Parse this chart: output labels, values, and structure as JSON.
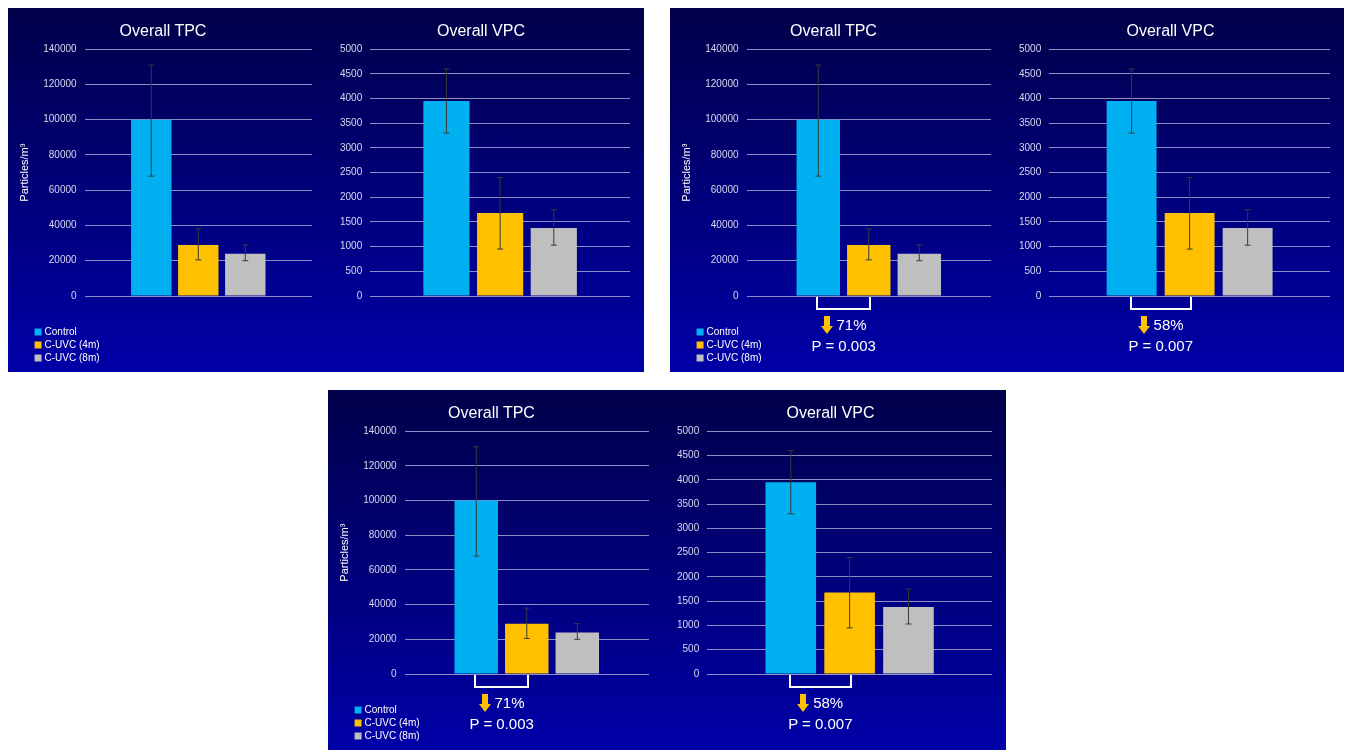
{
  "chart_data": [
    {
      "type": "bar",
      "title": "Overall TPC",
      "ylabel": "Particles/m³",
      "categories": [
        null
      ],
      "ylim": [
        0,
        140000
      ],
      "yticks": [
        0,
        20000,
        40000,
        60000,
        80000,
        100000,
        120000,
        140000
      ],
      "grid": "y",
      "tick_labels": "y",
      "legend": "bottom left",
      "series": [
        {
          "name": "Control",
          "color": "#00b0f0",
          "values": [
            100000
          ],
          "errors": [
            [
              68000,
              131000
            ]
          ]
        },
        {
          "name": "C-UVC (4m)",
          "color": "#ffc000",
          "values": [
            29000
          ],
          "errors": [
            [
              20500,
              38000
            ]
          ]
        },
        {
          "name": "C-UVC (8m)",
          "color": "#bfbfbf",
          "values": [
            24000
          ],
          "errors": [
            [
              20000,
              29000
            ]
          ]
        }
      ]
    },
    {
      "type": "bar",
      "title": "Overall VPC",
      "categories": [
        null
      ],
      "ylim": [
        0,
        5000
      ],
      "yticks": [
        0,
        500,
        1000,
        1500,
        2000,
        2500,
        3000,
        3500,
        4000,
        4500,
        5000
      ],
      "grid": "y",
      "tick_labels": "y",
      "series": [
        {
          "color": "#00b0f0",
          "values": [
            3950
          ],
          "errors": [
            [
              3300,
              4600
            ]
          ]
        },
        {
          "color": "#ffc000",
          "values": [
            1680
          ],
          "errors": [
            [
              950,
              2400
            ]
          ]
        },
        {
          "color": "#bfbfbf",
          "values": [
            1380
          ],
          "errors": [
            [
              1030,
              1750
            ]
          ]
        }
      ]
    },
    {
      "type": "bar",
      "title": "Overall TPC",
      "ylabel": "Particles/m³",
      "categories": [
        null
      ],
      "ylim": [
        0,
        140000
      ],
      "yticks": [
        0,
        20000,
        40000,
        60000,
        80000,
        100000,
        120000,
        140000
      ],
      "grid": "y",
      "tick_labels": "y",
      "legend": "bottom left",
      "annotations": [
        "71%",
        "P = 0.003"
      ],
      "series": [
        {
          "name": "Control",
          "color": "#00b0f0",
          "values": [
            100000
          ],
          "errors": [
            [
              68000,
              131000
            ]
          ]
        },
        {
          "name": "C-UVC (4m)",
          "color": "#ffc000",
          "values": [
            29000
          ],
          "errors": [
            [
              20500,
              38000
            ]
          ]
        },
        {
          "name": "C-UVC (8m)",
          "color": "#bfbfbf",
          "values": [
            24000
          ],
          "errors": [
            [
              20000,
              29000
            ]
          ]
        }
      ]
    },
    {
      "type": "bar",
      "title": "Overall VPC",
      "categories": [
        null
      ],
      "ylim": [
        0,
        5000
      ],
      "yticks": [
        0,
        500,
        1000,
        1500,
        2000,
        2500,
        3000,
        3500,
        4000,
        4500,
        5000
      ],
      "grid": "y",
      "tick_labels": "y",
      "annotations": [
        "58%",
        "P = 0.007"
      ],
      "series": [
        {
          "color": "#00b0f0",
          "values": [
            3950
          ],
          "errors": [
            [
              3300,
              4600
            ]
          ]
        },
        {
          "color": "#ffc000",
          "values": [
            1680
          ],
          "errors": [
            [
              950,
              2400
            ]
          ]
        },
        {
          "color": "#bfbfbf",
          "values": [
            1380
          ],
          "errors": [
            [
              1030,
              1750
            ]
          ]
        }
      ]
    },
    {
      "type": "bar",
      "title": "Overall TPC",
      "ylabel": "Particles/m³",
      "categories": [
        null
      ],
      "ylim": [
        0,
        140000
      ],
      "yticks": [
        0,
        20000,
        40000,
        60000,
        80000,
        100000,
        120000,
        140000
      ],
      "grid": "y",
      "tick_labels": "y",
      "legend": "bottom left",
      "annotations": [
        "71%",
        "P = 0.003"
      ],
      "series": [
        {
          "name": "Control",
          "color": "#00b0f0",
          "values": [
            100000
          ],
          "errors": [
            [
              68000,
              131000
            ]
          ]
        },
        {
          "name": "C-UVC (4m)",
          "color": "#ffc000",
          "values": [
            29000
          ],
          "errors": [
            [
              20500,
              38000
            ]
          ]
        },
        {
          "name": "C-UVC (8m)",
          "color": "#bfbfbf",
          "values": [
            24000
          ],
          "errors": [
            [
              20000,
              29000
            ]
          ]
        }
      ]
    },
    {
      "type": "bar",
      "title": "Overall VPC",
      "categories": [
        null
      ],
      "ylim": [
        0,
        5000
      ],
      "yticks": [
        0,
        500,
        1000,
        1500,
        2000,
        2500,
        3000,
        3500,
        4000,
        4500,
        5000
      ],
      "grid": "y",
      "tick_labels": "y",
      "annotations": [
        "58%",
        "P = 0.007"
      ],
      "series": [
        {
          "color": "#00b0f0",
          "values": [
            3950
          ],
          "errors": [
            [
              3300,
              4600
            ]
          ]
        },
        {
          "color": "#ffc000",
          "values": [
            1680
          ],
          "errors": [
            [
              950,
              2400
            ]
          ]
        },
        {
          "color": "#bfbfbf",
          "values": [
            1380
          ],
          "errors": [
            [
              1030,
              1750
            ]
          ]
        }
      ]
    }
  ]
}
